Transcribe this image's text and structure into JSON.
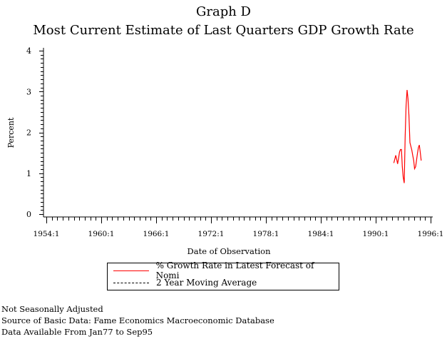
{
  "chart_data": {
    "type": "line",
    "title": "Graph D",
    "subtitle": "Most Current Estimate of Last Quarters GDP Growth Rate",
    "xlabel": "Date of Observation",
    "ylabel": "Percent",
    "xlim": [
      1954,
      1996
    ],
    "ylim": [
      0,
      4
    ],
    "x_ticks": [
      {
        "value": 1954,
        "label": "1954:1"
      },
      {
        "value": 1960,
        "label": "1960:1"
      },
      {
        "value": 1966,
        "label": "1966:1"
      },
      {
        "value": 1972,
        "label": "1972:1"
      },
      {
        "value": 1978,
        "label": "1978:1"
      },
      {
        "value": 1984,
        "label": "1984:1"
      },
      {
        "value": 1990,
        "label": "1990:1"
      },
      {
        "value": 1996,
        "label": "1996:1"
      }
    ],
    "y_ticks": [
      {
        "value": 0,
        "label": "0"
      },
      {
        "value": 1,
        "label": "1"
      },
      {
        "value": 2,
        "label": "2"
      },
      {
        "value": 3,
        "label": "3"
      },
      {
        "value": 4,
        "label": "4"
      }
    ],
    "grid": false,
    "legend_placement": "bottom-center",
    "series": [
      {
        "name": "% Growth Rate in Latest Forecast of Nomi",
        "color": "#ff0000",
        "style": "solid",
        "x": [
          1991.98,
          1992.08,
          1992.19,
          1992.29,
          1992.39,
          1992.5,
          1992.6,
          1992.7,
          1992.81,
          1992.91,
          1993.01,
          1993.12,
          1993.22,
          1993.32,
          1993.43,
          1993.53,
          1993.63,
          1993.74,
          1993.84,
          1993.94,
          1994.05,
          1994.15,
          1994.25,
          1994.36,
          1994.46,
          1994.56,
          1994.67,
          1994.77,
          1994.87,
          1994.97
        ],
        "values": [
          1.25,
          1.34,
          1.44,
          1.34,
          1.23,
          1.37,
          1.52,
          1.58,
          1.58,
          1.16,
          0.9,
          0.76,
          1.89,
          2.65,
          3.04,
          2.82,
          2.42,
          1.75,
          1.66,
          1.57,
          1.43,
          1.31,
          1.11,
          1.16,
          1.31,
          1.48,
          1.63,
          1.69,
          1.51,
          1.31
        ]
      },
      {
        "name": "2 Year Moving Average",
        "color": "#000000",
        "style": "dashed",
        "x": [],
        "values": []
      }
    ]
  },
  "footnotes": [
    "Not Seasonally Adjusted",
    "Source of Basic Data: Fame Economics Macroeconomic Database",
    "Data Available From Jan77 to Sep95"
  ]
}
